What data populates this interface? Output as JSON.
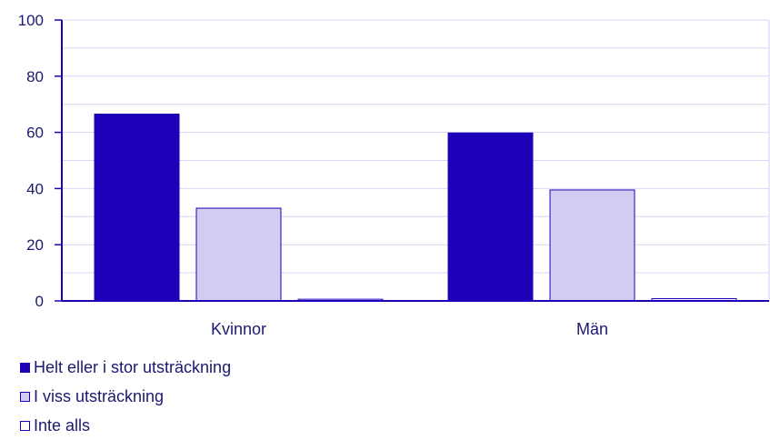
{
  "chart_data": {
    "type": "bar",
    "categories": [
      "Kvinnor",
      "Män"
    ],
    "series": [
      {
        "name": "Helt eller i stor utsträckning",
        "values": [
          66.5,
          59.8
        ],
        "color": "#1f00b8"
      },
      {
        "name": "I viss utsträckning",
        "values": [
          33.0,
          39.5
        ],
        "color": "#d1cdf2"
      },
      {
        "name": "Inte alls",
        "values": [
          0.6,
          0.8
        ],
        "color": "#ffffff"
      }
    ],
    "ylim": [
      0,
      100
    ],
    "yticks": [
      0,
      20,
      40,
      60,
      80,
      100
    ],
    "grid": true,
    "legend_position": "bottom-left",
    "axis_color": "#1f00b8",
    "grid_color": "#d8d4f4"
  }
}
